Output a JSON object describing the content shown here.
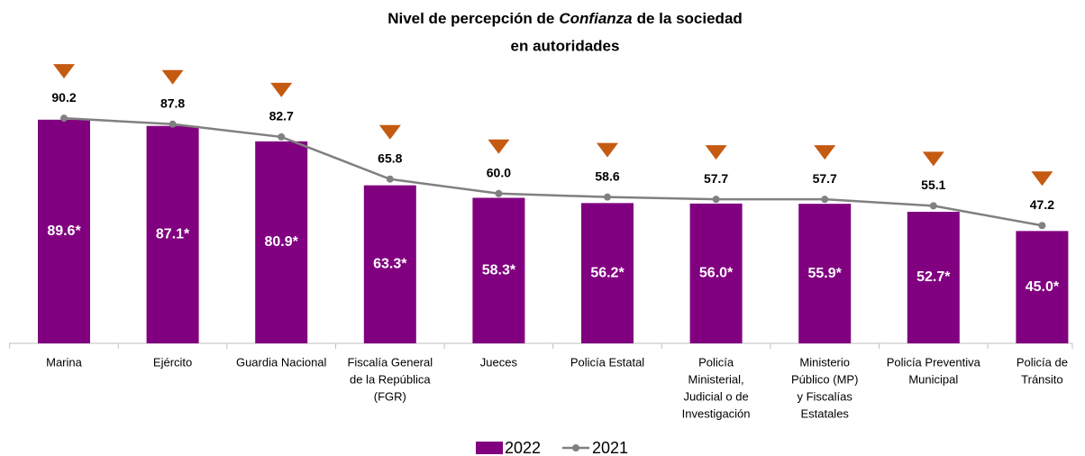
{
  "chart_data": {
    "type": "bar",
    "title": {
      "before": "Nivel de percepción de",
      "emphasis": "Confianza",
      "after": "de la sociedad",
      "line2": "en autoridades"
    },
    "categories": [
      [
        "Marina"
      ],
      [
        "Ejército"
      ],
      [
        "Guardia Nacional"
      ],
      [
        "Fiscalía General",
        "de la República",
        "(FGR)"
      ],
      [
        "Jueces"
      ],
      [
        "Policía Estatal"
      ],
      [
        "Policía",
        "Ministerial,",
        "Judicial o de",
        "Investigación"
      ],
      [
        "Ministerio",
        "Público (MP)",
        "y Fiscalías",
        "Estatales"
      ],
      [
        "Policía Preventiva",
        "Municipal"
      ],
      [
        "Policía de",
        "Tránsito"
      ]
    ],
    "series": [
      {
        "name": "2022",
        "type": "bar",
        "color": "#800080",
        "values": [
          89.6,
          87.1,
          80.9,
          63.3,
          58.3,
          56.2,
          56.0,
          55.9,
          52.7,
          45.0
        ],
        "value_labels": [
          "89.6*",
          "87.1*",
          "80.9*",
          "63.3*",
          "58.3*",
          "56.2*",
          "56.0*",
          "55.9*",
          "52.7*",
          "45.0*"
        ]
      },
      {
        "name": "2021",
        "type": "line",
        "color": "#808080",
        "values": [
          90.2,
          87.8,
          82.7,
          65.8,
          60.0,
          58.6,
          57.7,
          57.7,
          55.1,
          47.2
        ],
        "value_labels": [
          "90.2",
          "87.8",
          "82.7",
          "65.8",
          "60.0",
          "58.6",
          "57.7",
          "57.7",
          "55.1",
          "47.2"
        ]
      }
    ],
    "marker_color": "#c55a11",
    "ylim": [
      0,
      100
    ],
    "grid": false,
    "legend": "bottom"
  }
}
